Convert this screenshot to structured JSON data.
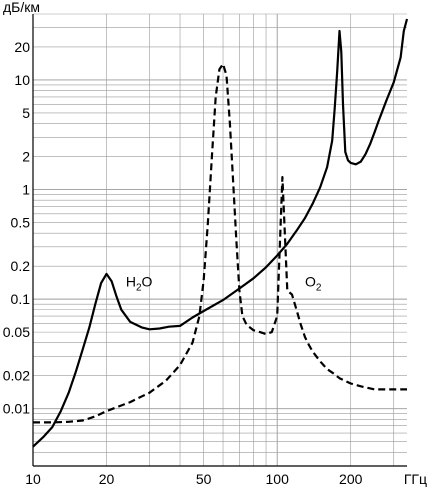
{
  "chart_data": {
    "type": "line",
    "title": "",
    "xlabel": "ГГц",
    "ylabel": "дБ/км",
    "x_scale": "log",
    "y_scale": "log",
    "xlim": [
      10,
      340
    ],
    "ylim": [
      0.003,
      40
    ],
    "grid": true,
    "x_ticks": [
      {
        "value": 10,
        "label": "10"
      },
      {
        "value": 20,
        "label": "20"
      },
      {
        "value": 50,
        "label": "50"
      },
      {
        "value": 100,
        "label": "100"
      },
      {
        "value": 200,
        "label": "200"
      }
    ],
    "y_ticks": [
      {
        "value": 20,
        "label": "20"
      },
      {
        "value": 10,
        "label": "10"
      },
      {
        "value": 5,
        "label": "5"
      },
      {
        "value": 2,
        "label": "2"
      },
      {
        "value": 1,
        "label": "1"
      },
      {
        "value": 0.5,
        "label": "0.5"
      },
      {
        "value": 0.2,
        "label": "0.2"
      },
      {
        "value": 0.1,
        "label": "0.1"
      },
      {
        "value": 0.05,
        "label": "0.05"
      },
      {
        "value": 0.02,
        "label": "0.02"
      },
      {
        "value": 0.01,
        "label": "0.01"
      }
    ],
    "annotations": [
      {
        "label": "H",
        "subscript": "2",
        "suffix": "O",
        "x": 24,
        "y": 0.12
      },
      {
        "label": "O",
        "subscript": "2",
        "suffix": "",
        "x": 130,
        "y": 0.12
      }
    ],
    "series": [
      {
        "style": "solid",
        "x": [
          10,
          11,
          12,
          13,
          14,
          15,
          16,
          17,
          18,
          19,
          20,
          21,
          22,
          23,
          25,
          28,
          30,
          33,
          36,
          40,
          45,
          50,
          60,
          70,
          80,
          90,
          100,
          110,
          120,
          130,
          140,
          150,
          160,
          168,
          172,
          176,
          180,
          183,
          186,
          190,
          195,
          200,
          210,
          220,
          230,
          240,
          250,
          260,
          280,
          300,
          320,
          330,
          340
        ],
        "y": [
          0.0045,
          0.0055,
          0.0068,
          0.0095,
          0.014,
          0.022,
          0.035,
          0.055,
          0.09,
          0.14,
          0.17,
          0.145,
          0.105,
          0.08,
          0.062,
          0.055,
          0.053,
          0.054,
          0.056,
          0.057,
          0.068,
          0.078,
          0.098,
          0.125,
          0.155,
          0.195,
          0.25,
          0.32,
          0.42,
          0.55,
          0.75,
          1.05,
          1.6,
          2.8,
          5.5,
          12,
          28,
          18,
          6,
          2.2,
          1.85,
          1.75,
          1.7,
          1.8,
          2.1,
          2.6,
          3.3,
          4.2,
          6.5,
          9.5,
          16,
          28,
          36
        ]
      },
      {
        "style": "dashed",
        "x": [
          10,
          12,
          14,
          16,
          18,
          20,
          22,
          25,
          28,
          30,
          35,
          40,
          45,
          48,
          50,
          52,
          54,
          56,
          58,
          60,
          62,
          64,
          66,
          68,
          70,
          72,
          75,
          80,
          85,
          90,
          95,
          100,
          105,
          110,
          115,
          120,
          125,
          130,
          135,
          140,
          150,
          160,
          170,
          180,
          200,
          220,
          250,
          280,
          300,
          320,
          340
        ],
        "y": [
          0.0075,
          0.0075,
          0.0076,
          0.0078,
          0.0085,
          0.0095,
          0.0103,
          0.0115,
          0.013,
          0.014,
          0.018,
          0.025,
          0.04,
          0.07,
          0.15,
          0.5,
          2.0,
          7.0,
          12.5,
          14,
          11,
          4.0,
          1.2,
          0.35,
          0.12,
          0.07,
          0.058,
          0.052,
          0.05,
          0.048,
          0.05,
          0.07,
          1.3,
          0.12,
          0.11,
          0.08,
          0.058,
          0.045,
          0.038,
          0.033,
          0.027,
          0.023,
          0.021,
          0.019,
          0.017,
          0.016,
          0.015,
          0.015,
          0.015,
          0.015,
          0.015
        ]
      }
    ]
  }
}
